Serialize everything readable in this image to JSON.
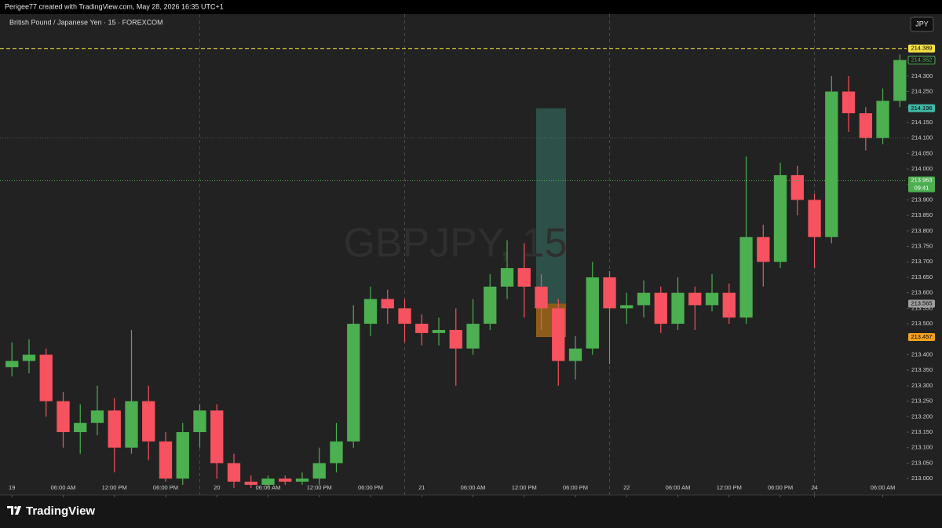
{
  "header": "Perigee77 created with TradingView.com, May 28, 2026 16:35 UTC+1",
  "footer": {
    "brand": "TradingView"
  },
  "chart_data": {
    "type": "candlestick",
    "title": "British Pound / Japanese Yen · 15 · FOREXCOM",
    "watermark": "GBPJPY, 15",
    "currency": "JPY",
    "up_color": "#4caf50",
    "down_color": "#f7525f",
    "x": [
      0,
      2,
      4,
      6,
      8,
      10,
      12,
      14,
      16,
      18,
      20,
      22,
      24,
      26,
      28,
      30,
      32,
      34,
      36,
      38,
      40,
      42,
      44,
      46,
      48,
      50,
      52,
      54,
      56,
      58,
      60,
      62,
      64,
      66,
      68,
      70,
      72,
      74,
      76,
      78,
      80,
      82,
      84,
      86,
      88,
      90,
      92,
      94,
      96,
      98,
      100,
      102,
      104
    ],
    "open": [
      213.36,
      213.38,
      213.4,
      213.25,
      213.15,
      213.18,
      213.22,
      213.1,
      213.25,
      213.12,
      213.0,
      213.15,
      213.22,
      213.05,
      212.99,
      212.98,
      213.0,
      212.99,
      213.0,
      213.05,
      213.12,
      213.5,
      213.58,
      213.55,
      213.5,
      213.47,
      213.48,
      213.42,
      213.5,
      213.62,
      213.68,
      213.62,
      213.55,
      213.38,
      213.42,
      213.65,
      213.55,
      213.56,
      213.6,
      213.5,
      213.6,
      213.56,
      213.6,
      213.52,
      213.78,
      213.7,
      213.98,
      213.9,
      213.78,
      214.25,
      214.18,
      214.1,
      214.22
    ],
    "high": [
      213.44,
      213.45,
      213.42,
      213.28,
      213.24,
      213.3,
      213.26,
      213.48,
      213.3,
      213.15,
      213.18,
      213.24,
      213.24,
      213.08,
      213.01,
      213.01,
      213.01,
      213.02,
      213.1,
      213.18,
      213.56,
      213.62,
      213.61,
      213.58,
      213.53,
      213.52,
      213.55,
      213.58,
      213.66,
      213.77,
      213.76,
      213.66,
      213.58,
      213.46,
      213.7,
      213.67,
      213.6,
      213.64,
      213.62,
      213.65,
      213.62,
      213.66,
      213.63,
      214.04,
      213.82,
      214.02,
      214.01,
      213.92,
      214.3,
      214.3,
      214.2,
      214.26,
      214.37
    ],
    "low": [
      213.33,
      213.34,
      213.2,
      213.1,
      213.08,
      213.14,
      213.02,
      213.08,
      213.06,
      212.99,
      212.98,
      213.1,
      213.0,
      212.97,
      212.97,
      212.97,
      212.98,
      212.98,
      212.98,
      213.02,
      213.1,
      213.46,
      213.5,
      213.44,
      213.43,
      213.43,
      213.3,
      213.4,
      213.48,
      213.58,
      213.52,
      213.48,
      213.3,
      213.32,
      213.4,
      213.37,
      213.5,
      213.52,
      213.47,
      213.48,
      213.48,
      213.54,
      213.5,
      213.5,
      213.62,
      213.68,
      213.85,
      213.68,
      213.76,
      214.12,
      214.06,
      214.08,
      214.2
    ],
    "close": [
      213.38,
      213.4,
      213.25,
      213.15,
      213.18,
      213.22,
      213.1,
      213.25,
      213.12,
      213.0,
      213.15,
      213.22,
      213.05,
      212.99,
      212.98,
      213.0,
      212.99,
      213.0,
      213.05,
      213.12,
      213.5,
      213.58,
      213.55,
      213.5,
      213.47,
      213.48,
      213.42,
      213.5,
      213.62,
      213.68,
      213.62,
      213.55,
      213.38,
      213.42,
      213.65,
      213.55,
      213.56,
      213.6,
      213.5,
      213.6,
      213.56,
      213.6,
      213.52,
      213.78,
      213.7,
      213.98,
      213.9,
      213.78,
      214.25,
      214.18,
      214.1,
      214.22,
      214.352
    ],
    "xlim": [
      -1.4,
      104.8
    ],
    "xticks": [
      {
        "value": 0,
        "label": "19"
      },
      {
        "value": 6,
        "label": "06:00 AM"
      },
      {
        "value": 12,
        "label": "12:00 PM"
      },
      {
        "value": 18,
        "label": "06:00 PM"
      },
      {
        "value": 24,
        "label": "20"
      },
      {
        "value": 30,
        "label": "06:00 AM"
      },
      {
        "value": 36,
        "label": "12:00 PM"
      },
      {
        "value": 42,
        "label": "06:00 PM"
      },
      {
        "value": 48,
        "label": "21"
      },
      {
        "value": 54,
        "label": "06:00 AM"
      },
      {
        "value": 60,
        "label": "12:00 PM"
      },
      {
        "value": 66,
        "label": "06:00 PM"
      },
      {
        "value": 72,
        "label": "22"
      },
      {
        "value": 78,
        "label": "06:00 AM"
      },
      {
        "value": 84,
        "label": "12:00 PM"
      },
      {
        "value": 90,
        "label": "06:00 PM"
      },
      {
        "value": 94,
        "label": "24"
      },
      {
        "value": 102,
        "label": "06:00 AM"
      }
    ],
    "ylim": [
      212.947,
      214.5
    ],
    "yticks": [
      {
        "value": 213,
        "label": "213.000"
      },
      {
        "value": 213.05,
        "label": "213.050"
      },
      {
        "value": 213.1,
        "label": "213.100"
      },
      {
        "value": 213.15,
        "label": "213.150"
      },
      {
        "value": 213.2,
        "label": "213.200"
      },
      {
        "value": 213.25,
        "label": "213.250"
      },
      {
        "value": 213.3,
        "label": "213.300"
      },
      {
        "value": 213.35,
        "label": "213.350"
      },
      {
        "value": 213.4,
        "label": "213.400"
      },
      {
        "value": 213.45,
        "label": "213.450"
      },
      {
        "value": 213.5,
        "label": "213.500"
      },
      {
        "value": 213.55,
        "label": "213.550"
      },
      {
        "value": 213.6,
        "label": "213.600"
      },
      {
        "value": 213.65,
        "label": "213.650"
      },
      {
        "value": 213.7,
        "label": "213.700"
      },
      {
        "value": 213.75,
        "label": "213.750"
      },
      {
        "value": 213.8,
        "label": "213.800"
      },
      {
        "value": 213.85,
        "label": "213.850"
      },
      {
        "value": 213.9,
        "label": "213.900"
      },
      {
        "value": 213.95,
        "label": "213.950"
      },
      {
        "value": 214,
        "label": "214.000"
      },
      {
        "value": 214.05,
        "label": "214.050"
      },
      {
        "value": 214.1,
        "label": "214.100"
      },
      {
        "value": 214.15,
        "label": "214.150"
      },
      {
        "value": 214.2,
        "label": "214.200"
      },
      {
        "value": 214.25,
        "label": "214.250"
      },
      {
        "value": 214.3,
        "label": "214.300"
      }
    ],
    "session_breaks": [
      22,
      46,
      70,
      94
    ],
    "hlines": [
      214.1
    ],
    "position": {
      "x": [
        61.4,
        64.9
      ],
      "target": 214.196,
      "entry": 213.565,
      "stop": 213.457
    },
    "price_labels": [
      {
        "value": 214.389,
        "color": "#f5e142",
        "text_color": "#000000",
        "line": "dashed"
      },
      {
        "value": 214.352,
        "color": "#1c1c1c",
        "text_color": "#4caf50",
        "line": "none"
      },
      {
        "value": 214.196,
        "color": "#3fb8a4",
        "text_color": "#000000",
        "line": "none"
      },
      {
        "value": 213.963,
        "color": "#4caf50",
        "text_color": "#ffffff",
        "line": "dotted",
        "sublabel": "09:41"
      },
      {
        "value": 213.565,
        "color": "#9e9e9e",
        "text_color": "#000000",
        "line": "none"
      },
      {
        "value": 213.457,
        "color": "#f7a21b",
        "text_color": "#000000",
        "line": "none"
      }
    ]
  }
}
